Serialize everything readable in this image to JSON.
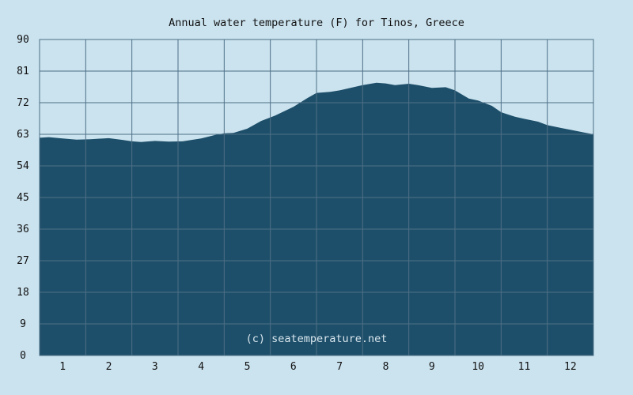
{
  "chart_data": {
    "type": "area",
    "title": "Annual water temperature (F) for Tinos, Greece",
    "watermark": "(c) seatemperature.net",
    "xlabel": "",
    "ylabel": "",
    "xlim": [
      0.5,
      12.5
    ],
    "ylim": [
      0,
      90
    ],
    "x_ticks": [
      1,
      2,
      3,
      4,
      5,
      6,
      7,
      8,
      9,
      10,
      11,
      12
    ],
    "y_ticks": [
      0,
      9,
      18,
      27,
      36,
      45,
      54,
      63,
      72,
      81,
      90
    ],
    "grid": true,
    "series": [
      {
        "x": [
          0.5,
          0.7,
          1.0,
          1.3,
          1.6,
          2.0,
          2.3,
          2.5,
          2.7,
          3.0,
          3.3,
          3.6,
          4.0,
          4.3,
          4.5,
          4.7,
          5.0,
          5.3,
          5.6,
          6.0,
          6.3,
          6.5,
          6.8,
          7.0,
          7.3,
          7.5,
          7.8,
          8.0,
          8.2,
          8.5,
          8.7,
          9.0,
          9.3,
          9.5,
          9.8,
          10.0,
          10.3,
          10.5,
          10.8,
          11.0,
          11.3,
          11.5,
          11.8,
          12.0,
          12.3,
          12.5
        ],
        "values": [
          62,
          62.2,
          61.8,
          61.5,
          61.6,
          61.9,
          61.4,
          61.0,
          60.8,
          61.1,
          60.9,
          61.0,
          61.8,
          62.8,
          63.3,
          63.4,
          64.6,
          66.8,
          68.3,
          70.8,
          73.3,
          74.8,
          75.1,
          75.5,
          76.4,
          77.0,
          77.7,
          77.5,
          77.0,
          77.4,
          77.0,
          76.2,
          76.4,
          75.5,
          73.2,
          72.6,
          71.1,
          69.3,
          68.0,
          67.4,
          66.6,
          65.6,
          64.8,
          64.3,
          63.5,
          63.0
        ],
        "color": "#1e4f6a"
      }
    ],
    "colors": {
      "background": "#cbe3ef",
      "plot_background": "#cbe3ef",
      "fill": "#1e4f6a",
      "grid": "#4e6f86",
      "text": "#111111"
    }
  }
}
